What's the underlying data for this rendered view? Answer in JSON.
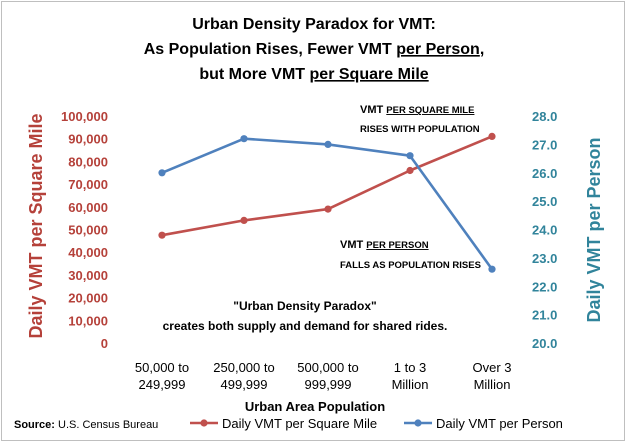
{
  "chart_data": {
    "type": "line",
    "title_lines": [
      {
        "parts": [
          {
            "text": "Urban Density Paradox for VMT:",
            "underline": false
          }
        ]
      },
      {
        "parts": [
          {
            "text": "As Population Rises, Fewer VMT ",
            "underline": false
          },
          {
            "text": "per Person",
            "underline": true
          },
          {
            "text": ",",
            "underline": false
          }
        ]
      },
      {
        "parts": [
          {
            "text": "but More VMT ",
            "underline": false
          },
          {
            "text": "per Square Mile",
            "underline": true
          }
        ]
      }
    ],
    "categories": [
      [
        "50,000 to",
        "249,999"
      ],
      [
        "250,000 to",
        "499,999"
      ],
      [
        "500,000 to",
        "999,999"
      ],
      [
        "1 to 3",
        "Million"
      ],
      [
        "Over 3",
        "Million"
      ]
    ],
    "xlabel": "Urban Area Population",
    "ylabel_left": "Daily VMT per Square Mile",
    "ylabel_right": "Daily VMT per Person",
    "ylim_left": [
      0,
      100000
    ],
    "ylim_right": [
      20,
      28
    ],
    "yticks_left": [
      "0",
      "10,000",
      "20,000",
      "30,000",
      "40,000",
      "50,000",
      "60,000",
      "70,000",
      "80,000",
      "90,000",
      "100,000"
    ],
    "yticks_right": [
      "20.0",
      "21.0",
      "22.0",
      "23.0",
      "24.0",
      "25.0",
      "26.0",
      "27.0",
      "28.0"
    ],
    "series": [
      {
        "name": "Daily VMT per Square Mile",
        "axis": "left",
        "color": "#c0504d",
        "values": [
          47500,
          54000,
          59000,
          76000,
          91000
        ]
      },
      {
        "name": "Daily VMT per Person",
        "axis": "right",
        "color": "#4f81bd",
        "values": [
          26.0,
          27.2,
          27.0,
          26.6,
          22.6
        ]
      }
    ],
    "annotations": {
      "sq_mile": {
        "line1_prefix": "VMT ",
        "line1_underlined": "PER SQUARE MILE",
        "line2": "RISES WITH POPULATION"
      },
      "person": {
        "line1_prefix": "VMT ",
        "line1_underlined": "PER PERSON",
        "line2": "FALLS AS POPULATION RISES"
      },
      "center_line1": "\"Urban Density Paradox\"",
      "center_line2": "creates both supply and demand for shared rides."
    },
    "source_label": "Source:",
    "source_text": "U.S. Census Bureau",
    "legend_position": "bottom-right"
  }
}
